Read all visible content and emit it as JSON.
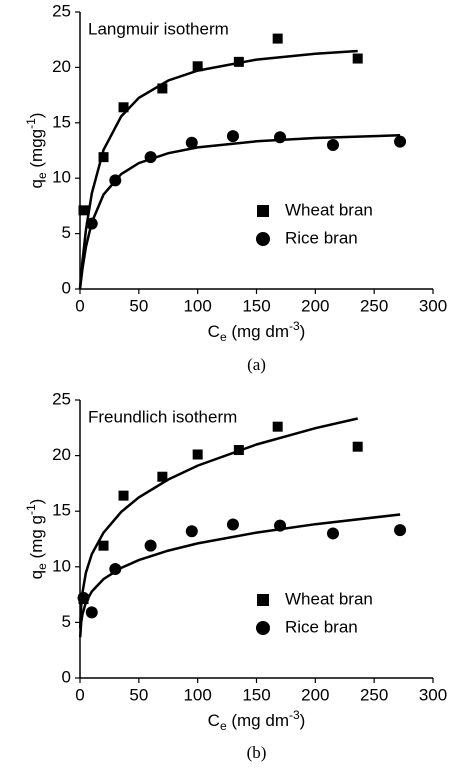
{
  "chart_data": [
    {
      "type": "scatter",
      "title": "Langmuir isotherm",
      "caption": "(a)",
      "xlabel_parts": [
        "C",
        "e",
        " (mg dm",
        "-3",
        ")"
      ],
      "ylabel_parts": [
        "q",
        "e",
        " (mgg",
        "-1",
        ")"
      ],
      "xlim": [
        0,
        300
      ],
      "xticks": [
        0,
        50,
        100,
        150,
        200,
        250,
        300
      ],
      "ylim": [
        0,
        25
      ],
      "yticks": [
        0,
        5,
        10,
        15,
        20,
        25
      ],
      "legend": "lower right",
      "series": [
        {
          "name": "Wheat bran",
          "marker": "square",
          "color": "#000000",
          "x": [
            3,
            20,
            37,
            70,
            100,
            135,
            168,
            236
          ],
          "values": [
            7.1,
            11.9,
            16.4,
            18.1,
            20.1,
            20.5,
            22.6,
            20.8
          ]
        },
        {
          "name": "Rice bran",
          "marker": "circle",
          "color": "#000000",
          "x": [
            10,
            30,
            60,
            95,
            130,
            170,
            215,
            272
          ],
          "values": [
            5.9,
            9.8,
            11.9,
            13.2,
            13.8,
            13.7,
            13.0,
            13.3
          ]
        }
      ],
      "fits": [
        {
          "color": "#000000",
          "x": [
            0,
            2,
            5,
            10,
            20,
            35,
            50,
            75,
            100,
            150,
            200,
            236
          ],
          "values": [
            0,
            2.46,
            5.31,
            8.63,
            12.55,
            15.58,
            17.25,
            18.82,
            19.71,
            20.7,
            21.23,
            21.48
          ]
        },
        {
          "color": "#000000",
          "x": [
            0,
            2,
            5,
            10,
            20,
            35,
            50,
            75,
            100,
            150,
            200,
            272
          ],
          "values": [
            0,
            1.79,
            3.79,
            6.01,
            8.52,
            10.37,
            11.36,
            12.26,
            12.78,
            13.33,
            13.63,
            13.87
          ]
        }
      ]
    },
    {
      "type": "scatter",
      "title": "Freundlich isotherm",
      "caption": "(b)",
      "xlabel_parts": [
        "C",
        "e",
        " (mg dm",
        "-3",
        ")"
      ],
      "ylabel_parts": [
        "q",
        "e",
        " (mg g",
        "-1",
        ")"
      ],
      "xlim": [
        0,
        300
      ],
      "xticks": [
        0,
        50,
        100,
        150,
        200,
        250,
        300
      ],
      "ylim": [
        0,
        25
      ],
      "yticks": [
        0,
        5,
        10,
        15,
        20,
        25
      ],
      "legend": "lower right",
      "series": [
        {
          "name": "Wheat bran",
          "marker": "square",
          "color": "#000000",
          "x": [
            3,
            20,
            37,
            70,
            100,
            135,
            168,
            236
          ],
          "values": [
            7.1,
            11.9,
            16.4,
            18.1,
            20.1,
            20.5,
            22.6,
            20.8
          ]
        },
        {
          "name": "Rice bran",
          "marker": "circle",
          "color": "#000000",
          "x": [
            3,
            10,
            30,
            60,
            95,
            130,
            170,
            215,
            272
          ],
          "values": [
            7.2,
            5.9,
            9.8,
            11.9,
            13.2,
            13.8,
            13.7,
            13.0,
            13.3
          ]
        }
      ],
      "fits": [
        {
          "color": "#000000",
          "x": [
            0.2,
            1,
            2,
            5,
            10,
            20,
            35,
            50,
            75,
            100,
            150,
            200,
            236
          ],
          "values": [
            4.46,
            6.5,
            7.65,
            9.47,
            11.14,
            13.07,
            14.94,
            16.24,
            17.85,
            19.1,
            21.0,
            22.46,
            23.34
          ]
        },
        {
          "color": "#000000",
          "x": [
            0.2,
            1,
            2,
            5,
            10,
            20,
            35,
            50,
            75,
            100,
            150,
            200,
            272
          ],
          "values": [
            3.67,
            5,
            5.71,
            6.81,
            7.78,
            8.89,
            9.9,
            10.6,
            11.46,
            12.1,
            13.08,
            13.83,
            14.7
          ]
        }
      ]
    }
  ]
}
